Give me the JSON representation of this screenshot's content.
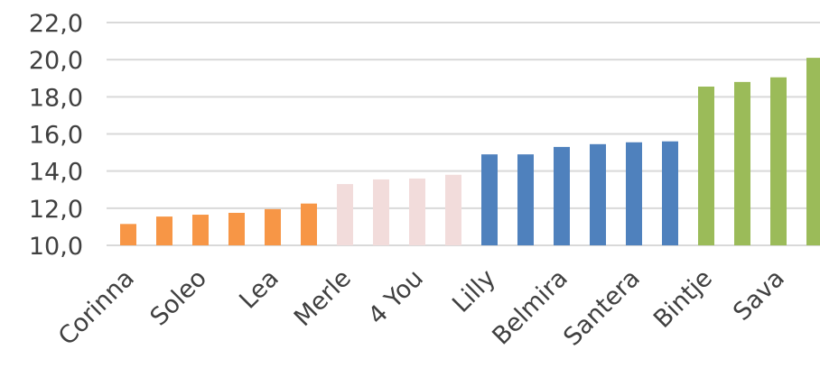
{
  "chart_data": {
    "type": "bar",
    "title": "",
    "xlabel": "",
    "ylabel": "",
    "ylim": [
      10,
      22
    ],
    "yticks": [
      "10,0",
      "12,0",
      "14,0",
      "16,0",
      "18,0",
      "20,0",
      "22,0"
    ],
    "grid": true,
    "legend": "none",
    "categories": [
      "Corinna",
      "",
      "Soleo",
      "",
      "Lea",
      "",
      "Merle",
      "",
      "4 You",
      "",
      "Lilly",
      "",
      "Belmira",
      "",
      "Santera",
      "",
      "Bintje",
      "",
      "Sava",
      ""
    ],
    "values": [
      11.15,
      11.55,
      11.65,
      11.75,
      11.95,
      12.25,
      13.3,
      13.55,
      13.6,
      13.8,
      14.9,
      14.9,
      15.3,
      15.45,
      15.55,
      15.6,
      18.55,
      18.8,
      19.05,
      20.1
    ],
    "groups": [
      0,
      0,
      0,
      0,
      0,
      0,
      1,
      1,
      1,
      1,
      2,
      2,
      2,
      2,
      2,
      2,
      3,
      3,
      3,
      3
    ],
    "group_colors": [
      "#f79646",
      "#f2dcdb",
      "#4f81bd",
      "#9bbb59"
    ],
    "grid_color": "#d9d9d9",
    "text_color": "#404040"
  }
}
